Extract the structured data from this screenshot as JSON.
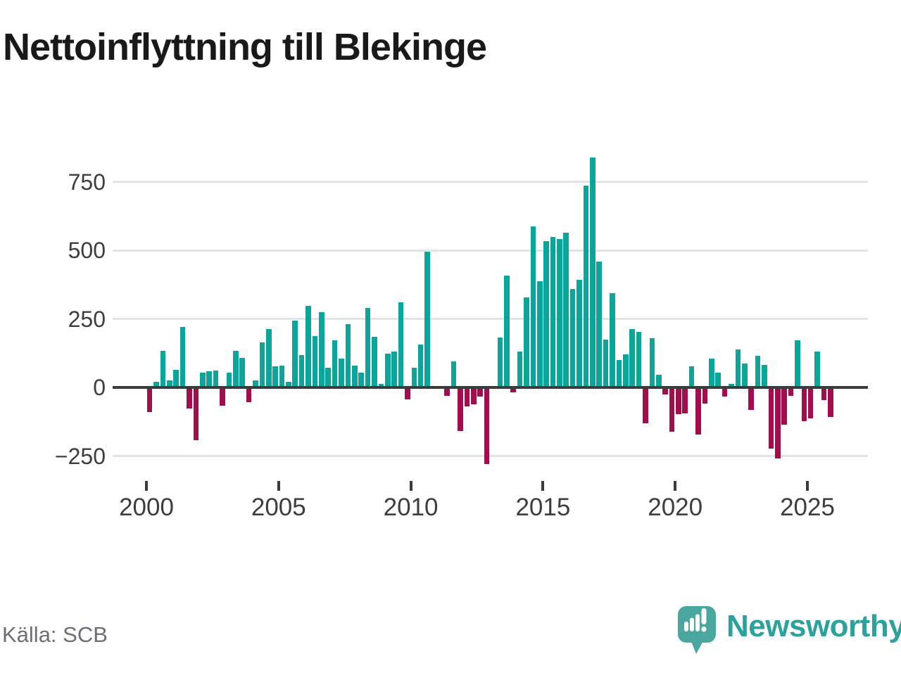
{
  "title": "Nettoinflyttning till Blekinge",
  "footer": {
    "source": "Källa: SCB",
    "logo_text": "Newsworthy"
  },
  "chart_data": {
    "type": "bar",
    "title": "Nettoinflyttning till Blekinge",
    "frequency": "quarterly",
    "start_year": 2000,
    "values": [
      -91,
      20,
      133,
      26,
      64,
      221,
      -78,
      -192,
      54,
      60,
      62,
      -66,
      55,
      133,
      107,
      -54,
      26,
      165,
      214,
      77,
      79,
      21,
      243,
      118,
      297,
      188,
      274,
      73,
      171,
      105,
      230,
      79,
      54,
      290,
      185,
      13,
      124,
      132,
      311,
      -43,
      71,
      156,
      496,
      0,
      0,
      -31,
      94,
      -160,
      -68,
      -62,
      -34,
      -280,
      0,
      183,
      408,
      -19,
      130,
      328,
      588,
      386,
      533,
      550,
      540,
      563,
      358,
      392,
      737,
      838,
      460,
      175,
      344,
      101,
      121,
      214,
      202,
      -130,
      180,
      47,
      -25,
      -161,
      -97,
      -95,
      77,
      -172,
      -59,
      105,
      55,
      -34,
      12,
      138,
      87,
      -81,
      115,
      81,
      -222,
      -258,
      -135,
      -32,
      173,
      -124,
      -113,
      132,
      -47,
      -107
    ],
    "x_axis": {
      "tick_years": [
        2000,
        2005,
        2010,
        2015,
        2020,
        2025
      ],
      "tick_labels": [
        "2000",
        "2005",
        "2010",
        "2015",
        "2020",
        "2025"
      ]
    },
    "y_axis": {
      "ticks": [
        750,
        500,
        250,
        0,
        -250
      ],
      "tick_labels": [
        "750",
        "500",
        "250",
        "0",
        "−250"
      ]
    },
    "ylim": [
      -310,
      870
    ],
    "grid": true,
    "legend": false,
    "colors": {
      "positive": "#0aa69c",
      "negative": "#a30d4c",
      "zero_axis": "#3b3b3b",
      "gridline": "#e3e3e3",
      "logo_teal": "#4aa7a0"
    }
  }
}
